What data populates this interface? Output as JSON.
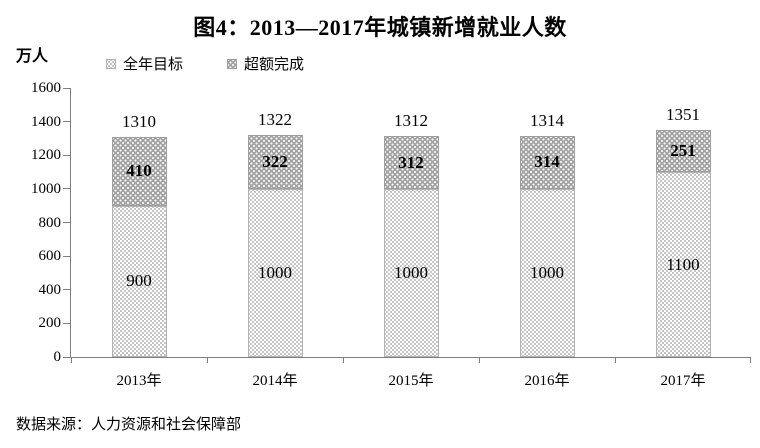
{
  "chart_data": {
    "type": "bar",
    "stacked": true,
    "title": "图4：2013—2017年城镇新增就业人数",
    "unit_label": "万人",
    "categories": [
      "2013年",
      "2014年",
      "2015年",
      "2016年",
      "2017年"
    ],
    "series": [
      {
        "name": "全年目标",
        "values": [
          900,
          1000,
          1000,
          1000,
          1100
        ]
      },
      {
        "name": "超额完成",
        "values": [
          410,
          322,
          312,
          314,
          251
        ]
      }
    ],
    "totals": [
      1310,
      1322,
      1312,
      1314,
      1351
    ],
    "ylim": [
      0,
      1600
    ],
    "yticks": [
      0,
      200,
      400,
      600,
      800,
      1000,
      1200,
      1400,
      1600
    ],
    "grid": false,
    "legend_position": "top-left",
    "source": "数据来源：人力资源和社会保障部",
    "colors": {
      "target_fill": "#ffffff",
      "target_dot": "#8e8e8e",
      "over_fill": "#a3a3a3",
      "over_dot": "#ffffff",
      "axis": "#7f7f7f",
      "text": "#000000"
    }
  }
}
